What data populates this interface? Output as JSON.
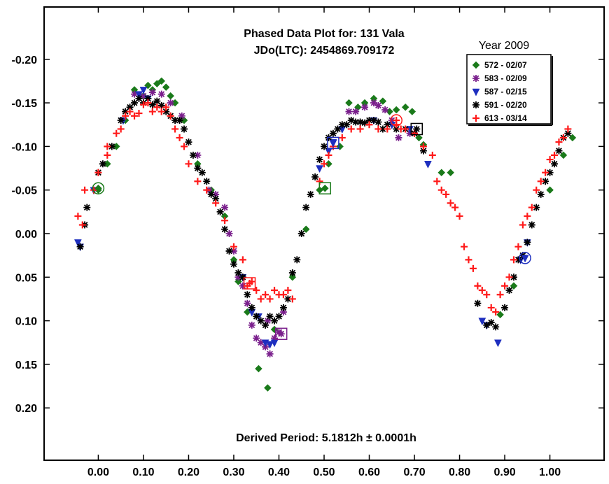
{
  "chart_data": {
    "type": "scatter",
    "title_line1": "Phased Data Plot for: 131 Vala",
    "title_line2": "JDo(LTC): 2454869.709172",
    "footer": "Derived Period: 5.1812h  ± 0.0001h",
    "xlim": [
      -0.12,
      1.12
    ],
    "ylim": [
      0.26,
      -0.26
    ],
    "y_inverted": true,
    "x_ticks": [
      "0.00",
      "0.10",
      "0.20",
      "0.30",
      "0.40",
      "0.50",
      "0.60",
      "0.70",
      "0.80",
      "0.90",
      "1.00"
    ],
    "x_tick_values": [
      0.0,
      0.1,
      0.2,
      0.3,
      0.4,
      0.5,
      0.6,
      0.7,
      0.8,
      0.9,
      1.0
    ],
    "y_ticks": [
      "-0.20",
      "-0.15",
      "-0.10",
      "-0.05",
      "0.00",
      "0.05",
      "0.10",
      "0.15",
      "0.20"
    ],
    "y_tick_values": [
      -0.2,
      -0.15,
      -0.1,
      -0.05,
      0.0,
      0.05,
      0.1,
      0.15,
      0.2
    ],
    "grid": false,
    "legend": {
      "title": "Year 2009",
      "placement": "top-right"
    },
    "series": [
      {
        "name": "572 - 02/07",
        "marker": "diamond",
        "color": "#1a7a1a",
        "points": [
          [
            0.0,
            -0.05
          ],
          [
            0.02,
            -0.08
          ],
          [
            0.04,
            -0.1
          ],
          [
            0.06,
            -0.13
          ],
          [
            0.08,
            -0.165
          ],
          [
            0.1,
            -0.158
          ],
          [
            0.11,
            -0.17
          ],
          [
            0.12,
            -0.165
          ],
          [
            0.13,
            -0.172
          ],
          [
            0.14,
            -0.175
          ],
          [
            0.15,
            -0.168
          ],
          [
            0.16,
            -0.158
          ],
          [
            0.17,
            -0.15
          ],
          [
            0.19,
            -0.13
          ],
          [
            0.22,
            -0.08
          ],
          [
            0.25,
            -0.05
          ],
          [
            0.28,
            -0.02
          ],
          [
            0.3,
            0.03
          ],
          [
            0.31,
            0.055
          ],
          [
            0.33,
            0.09
          ],
          [
            0.355,
            0.155
          ],
          [
            0.375,
            0.177
          ],
          [
            0.39,
            0.11
          ],
          [
            0.43,
            0.05
          ],
          [
            0.46,
            -0.005
          ],
          [
            0.49,
            -0.05
          ],
          [
            0.51,
            -0.08
          ],
          [
            0.535,
            -0.1
          ],
          [
            0.555,
            -0.15
          ],
          [
            0.575,
            -0.145
          ],
          [
            0.59,
            -0.15
          ],
          [
            0.61,
            -0.155
          ],
          [
            0.63,
            -0.152
          ],
          [
            0.645,
            -0.14
          ],
          [
            0.66,
            -0.142
          ],
          [
            0.68,
            -0.145
          ],
          [
            0.695,
            -0.14
          ],
          [
            0.71,
            -0.11
          ],
          [
            0.72,
            -0.102
          ],
          [
            0.76,
            -0.07
          ],
          [
            0.78,
            -0.07
          ],
          [
            0.89,
            0.093
          ],
          [
            0.92,
            0.06
          ],
          [
            1.0,
            -0.05
          ],
          [
            1.03,
            -0.09
          ],
          [
            1.05,
            -0.11
          ]
        ]
      },
      {
        "name": "583 - 02/09",
        "marker": "asterisk",
        "color": "#7a1f8c",
        "points": [
          [
            0.08,
            -0.16
          ],
          [
            0.1,
            -0.158
          ],
          [
            0.12,
            -0.162
          ],
          [
            0.14,
            -0.16
          ],
          [
            0.16,
            -0.15
          ],
          [
            0.185,
            -0.135
          ],
          [
            0.22,
            -0.09
          ],
          [
            0.245,
            -0.05
          ],
          [
            0.26,
            -0.045
          ],
          [
            0.28,
            -0.03
          ],
          [
            0.29,
            0.0
          ],
          [
            0.3,
            0.02
          ],
          [
            0.31,
            0.05
          ],
          [
            0.32,
            0.06
          ],
          [
            0.33,
            0.08
          ],
          [
            0.34,
            0.105
          ],
          [
            0.35,
            0.12
          ],
          [
            0.36,
            0.125
          ],
          [
            0.37,
            0.13
          ],
          [
            0.375,
            0.1
          ],
          [
            0.38,
            0.138
          ],
          [
            0.39,
            0.12
          ],
          [
            0.4,
            0.113
          ],
          [
            0.41,
            0.09
          ],
          [
            0.555,
            -0.14
          ],
          [
            0.57,
            -0.14
          ],
          [
            0.59,
            -0.145
          ],
          [
            0.61,
            -0.15
          ],
          [
            0.62,
            -0.147
          ],
          [
            0.635,
            -0.142
          ],
          [
            0.65,
            -0.13
          ],
          [
            0.665,
            -0.11
          ],
          [
            0.69,
            -0.115
          ]
        ]
      },
      {
        "name": "587 - 02/15",
        "marker": "triangle",
        "color": "#1e2fbf",
        "points": [
          [
            -0.045,
            0.01
          ],
          [
            -0.04,
            0.015
          ],
          [
            -0.01,
            -0.05
          ],
          [
            0.055,
            -0.13
          ],
          [
            0.09,
            -0.16
          ],
          [
            0.1,
            -0.165
          ],
          [
            0.11,
            -0.155
          ],
          [
            0.32,
            0.05
          ],
          [
            0.34,
            0.09
          ],
          [
            0.355,
            0.095
          ],
          [
            0.37,
            0.125
          ],
          [
            0.38,
            0.127
          ],
          [
            0.39,
            0.125
          ],
          [
            0.49,
            -0.075
          ],
          [
            0.51,
            -0.095
          ],
          [
            0.52,
            -0.105
          ],
          [
            0.54,
            -0.12
          ],
          [
            0.61,
            -0.13
          ],
          [
            0.65,
            -0.125
          ],
          [
            0.69,
            -0.12
          ],
          [
            0.73,
            -0.08
          ],
          [
            0.85,
            0.1
          ],
          [
            0.86,
            0.105
          ],
          [
            0.885,
            0.125
          ],
          [
            0.935,
            0.03
          ],
          [
            0.95,
            0.01
          ]
        ]
      },
      {
        "name": "591 - 02/20",
        "marker": "asterisk",
        "color": "#000000",
        "points": [
          [
            -0.04,
            0.015
          ],
          [
            -0.03,
            -0.01
          ],
          [
            -0.025,
            -0.03
          ],
          [
            0.0,
            -0.07
          ],
          [
            0.01,
            -0.08
          ],
          [
            0.03,
            -0.1
          ],
          [
            0.05,
            -0.13
          ],
          [
            0.06,
            -0.14
          ],
          [
            0.07,
            -0.145
          ],
          [
            0.08,
            -0.15
          ],
          [
            0.09,
            -0.155
          ],
          [
            0.1,
            -0.15
          ],
          [
            0.11,
            -0.155
          ],
          [
            0.12,
            -0.148
          ],
          [
            0.13,
            -0.152
          ],
          [
            0.14,
            -0.147
          ],
          [
            0.15,
            -0.14
          ],
          [
            0.16,
            -0.135
          ],
          [
            0.17,
            -0.13
          ],
          [
            0.18,
            -0.13
          ],
          [
            0.19,
            -0.12
          ],
          [
            0.2,
            -0.105
          ],
          [
            0.21,
            -0.09
          ],
          [
            0.22,
            -0.075
          ],
          [
            0.23,
            -0.07
          ],
          [
            0.24,
            -0.06
          ],
          [
            0.25,
            -0.045
          ],
          [
            0.26,
            -0.04
          ],
          [
            0.27,
            -0.025
          ],
          [
            0.28,
            -0.005
          ],
          [
            0.29,
            0.02
          ],
          [
            0.3,
            0.035
          ],
          [
            0.31,
            0.045
          ],
          [
            0.32,
            0.05
          ],
          [
            0.33,
            0.07
          ],
          [
            0.34,
            0.085
          ],
          [
            0.35,
            0.095
          ],
          [
            0.36,
            0.1
          ],
          [
            0.37,
            0.105
          ],
          [
            0.38,
            0.095
          ],
          [
            0.39,
            0.1
          ],
          [
            0.4,
            0.095
          ],
          [
            0.41,
            0.085
          ],
          [
            0.42,
            0.075
          ],
          [
            0.43,
            0.045
          ],
          [
            0.44,
            0.03
          ],
          [
            0.45,
            0.0
          ],
          [
            0.46,
            -0.03
          ],
          [
            0.47,
            -0.045
          ],
          [
            0.48,
            -0.065
          ],
          [
            0.49,
            -0.085
          ],
          [
            0.5,
            -0.1
          ],
          [
            0.51,
            -0.11
          ],
          [
            0.52,
            -0.115
          ],
          [
            0.53,
            -0.12
          ],
          [
            0.54,
            -0.125
          ],
          [
            0.55,
            -0.125
          ],
          [
            0.56,
            -0.13
          ],
          [
            0.57,
            -0.128
          ],
          [
            0.58,
            -0.128
          ],
          [
            0.59,
            -0.127
          ],
          [
            0.6,
            -0.13
          ],
          [
            0.61,
            -0.13
          ],
          [
            0.62,
            -0.128
          ],
          [
            0.63,
            -0.12
          ],
          [
            0.64,
            -0.125
          ],
          [
            0.66,
            -0.12
          ],
          [
            0.68,
            -0.12
          ],
          [
            0.7,
            -0.115
          ],
          [
            0.72,
            -0.095
          ],
          [
            0.84,
            0.08
          ],
          [
            0.86,
            0.105
          ],
          [
            0.87,
            0.102
          ],
          [
            0.88,
            0.107
          ],
          [
            0.9,
            0.085
          ],
          [
            0.91,
            0.065
          ],
          [
            0.92,
            0.05
          ],
          [
            0.93,
            0.03
          ],
          [
            0.94,
            0.025
          ],
          [
            0.95,
            0.01
          ],
          [
            0.96,
            -0.01
          ],
          [
            0.97,
            -0.03
          ],
          [
            0.98,
            -0.045
          ],
          [
            0.99,
            -0.06
          ],
          [
            1.0,
            -0.07
          ],
          [
            1.01,
            -0.08
          ],
          [
            1.02,
            -0.095
          ],
          [
            1.03,
            -0.11
          ],
          [
            1.04,
            -0.115
          ]
        ]
      },
      {
        "name": "613 - 03/14",
        "marker": "plus",
        "color": "#ff1a1a",
        "points": [
          [
            -0.045,
            -0.02
          ],
          [
            -0.035,
            -0.01
          ],
          [
            -0.03,
            -0.05
          ],
          [
            -0.01,
            -0.05
          ],
          [
            0.0,
            -0.07
          ],
          [
            0.02,
            -0.09
          ],
          [
            0.02,
            -0.1
          ],
          [
            0.04,
            -0.115
          ],
          [
            0.05,
            -0.12
          ],
          [
            0.06,
            -0.135
          ],
          [
            0.07,
            -0.14
          ],
          [
            0.08,
            -0.135
          ],
          [
            0.09,
            -0.138
          ],
          [
            0.1,
            -0.148
          ],
          [
            0.11,
            -0.15
          ],
          [
            0.12,
            -0.14
          ],
          [
            0.13,
            -0.145
          ],
          [
            0.14,
            -0.14
          ],
          [
            0.15,
            -0.145
          ],
          [
            0.16,
            -0.135
          ],
          [
            0.17,
            -0.12
          ],
          [
            0.18,
            -0.11
          ],
          [
            0.19,
            -0.1
          ],
          [
            0.2,
            -0.08
          ],
          [
            0.22,
            -0.06
          ],
          [
            0.24,
            -0.05
          ],
          [
            0.26,
            -0.035
          ],
          [
            0.28,
            -0.015
          ],
          [
            0.3,
            0.015
          ],
          [
            0.32,
            0.03
          ],
          [
            0.33,
            0.06
          ],
          [
            0.34,
            0.055
          ],
          [
            0.35,
            0.065
          ],
          [
            0.36,
            0.075
          ],
          [
            0.37,
            0.07
          ],
          [
            0.38,
            0.075
          ],
          [
            0.39,
            0.065
          ],
          [
            0.4,
            0.07
          ],
          [
            0.41,
            0.07
          ],
          [
            0.42,
            0.065
          ],
          [
            0.43,
            0.075
          ],
          [
            0.49,
            -0.06
          ],
          [
            0.5,
            -0.08
          ],
          [
            0.51,
            -0.09
          ],
          [
            0.52,
            -0.1
          ],
          [
            0.54,
            -0.11
          ],
          [
            0.56,
            -0.12
          ],
          [
            0.58,
            -0.12
          ],
          [
            0.6,
            -0.125
          ],
          [
            0.62,
            -0.12
          ],
          [
            0.64,
            -0.12
          ],
          [
            0.66,
            -0.125
          ],
          [
            0.67,
            -0.12
          ],
          [
            0.68,
            -0.12
          ],
          [
            0.7,
            -0.115
          ],
          [
            0.72,
            -0.1
          ],
          [
            0.74,
            -0.09
          ],
          [
            0.75,
            -0.06
          ],
          [
            0.76,
            -0.05
          ],
          [
            0.77,
            -0.045
          ],
          [
            0.78,
            -0.035
          ],
          [
            0.79,
            -0.03
          ],
          [
            0.8,
            -0.02
          ],
          [
            0.81,
            0.015
          ],
          [
            0.82,
            0.03
          ],
          [
            0.83,
            0.04
          ],
          [
            0.84,
            0.06
          ],
          [
            0.85,
            0.065
          ],
          [
            0.86,
            0.07
          ],
          [
            0.87,
            0.085
          ],
          [
            0.88,
            0.09
          ],
          [
            0.89,
            0.07
          ],
          [
            0.9,
            0.06
          ],
          [
            0.91,
            0.05
          ],
          [
            0.92,
            0.03
          ],
          [
            0.93,
            0.015
          ],
          [
            0.94,
            -0.01
          ],
          [
            0.95,
            -0.02
          ],
          [
            0.96,
            -0.03
          ],
          [
            0.97,
            -0.05
          ],
          [
            0.98,
            -0.06
          ],
          [
            0.99,
            -0.07
          ],
          [
            1.0,
            -0.085
          ],
          [
            1.01,
            -0.09
          ],
          [
            1.02,
            -0.105
          ],
          [
            1.03,
            -0.11
          ],
          [
            1.04,
            -0.12
          ]
        ]
      }
    ],
    "highlighted": [
      {
        "series": 0,
        "x": 0.0,
        "y": -0.052,
        "shape": "circle",
        "color": "#1a7a1a"
      },
      {
        "series": 0,
        "x": 0.502,
        "y": -0.052,
        "shape": "square",
        "color": "#1a7a1a"
      },
      {
        "series": 2,
        "x": 0.52,
        "y": -0.104,
        "shape": "square",
        "color": "#1e2fbf"
      },
      {
        "series": 2,
        "x": 0.945,
        "y": 0.028,
        "shape": "circle",
        "color": "#1e2fbf"
      },
      {
        "series": 4,
        "x": 0.335,
        "y": 0.057,
        "shape": "square",
        "color": "#ff1a1a"
      },
      {
        "series": 1,
        "x": 0.405,
        "y": 0.115,
        "shape": "square",
        "color": "#7a1f8c"
      },
      {
        "series": 3,
        "x": 0.705,
        "y": -0.12,
        "shape": "square",
        "color": "#000000"
      },
      {
        "series": 4,
        "x": 0.66,
        "y": -0.13,
        "shape": "circle",
        "color": "#ff1a1a"
      }
    ]
  }
}
